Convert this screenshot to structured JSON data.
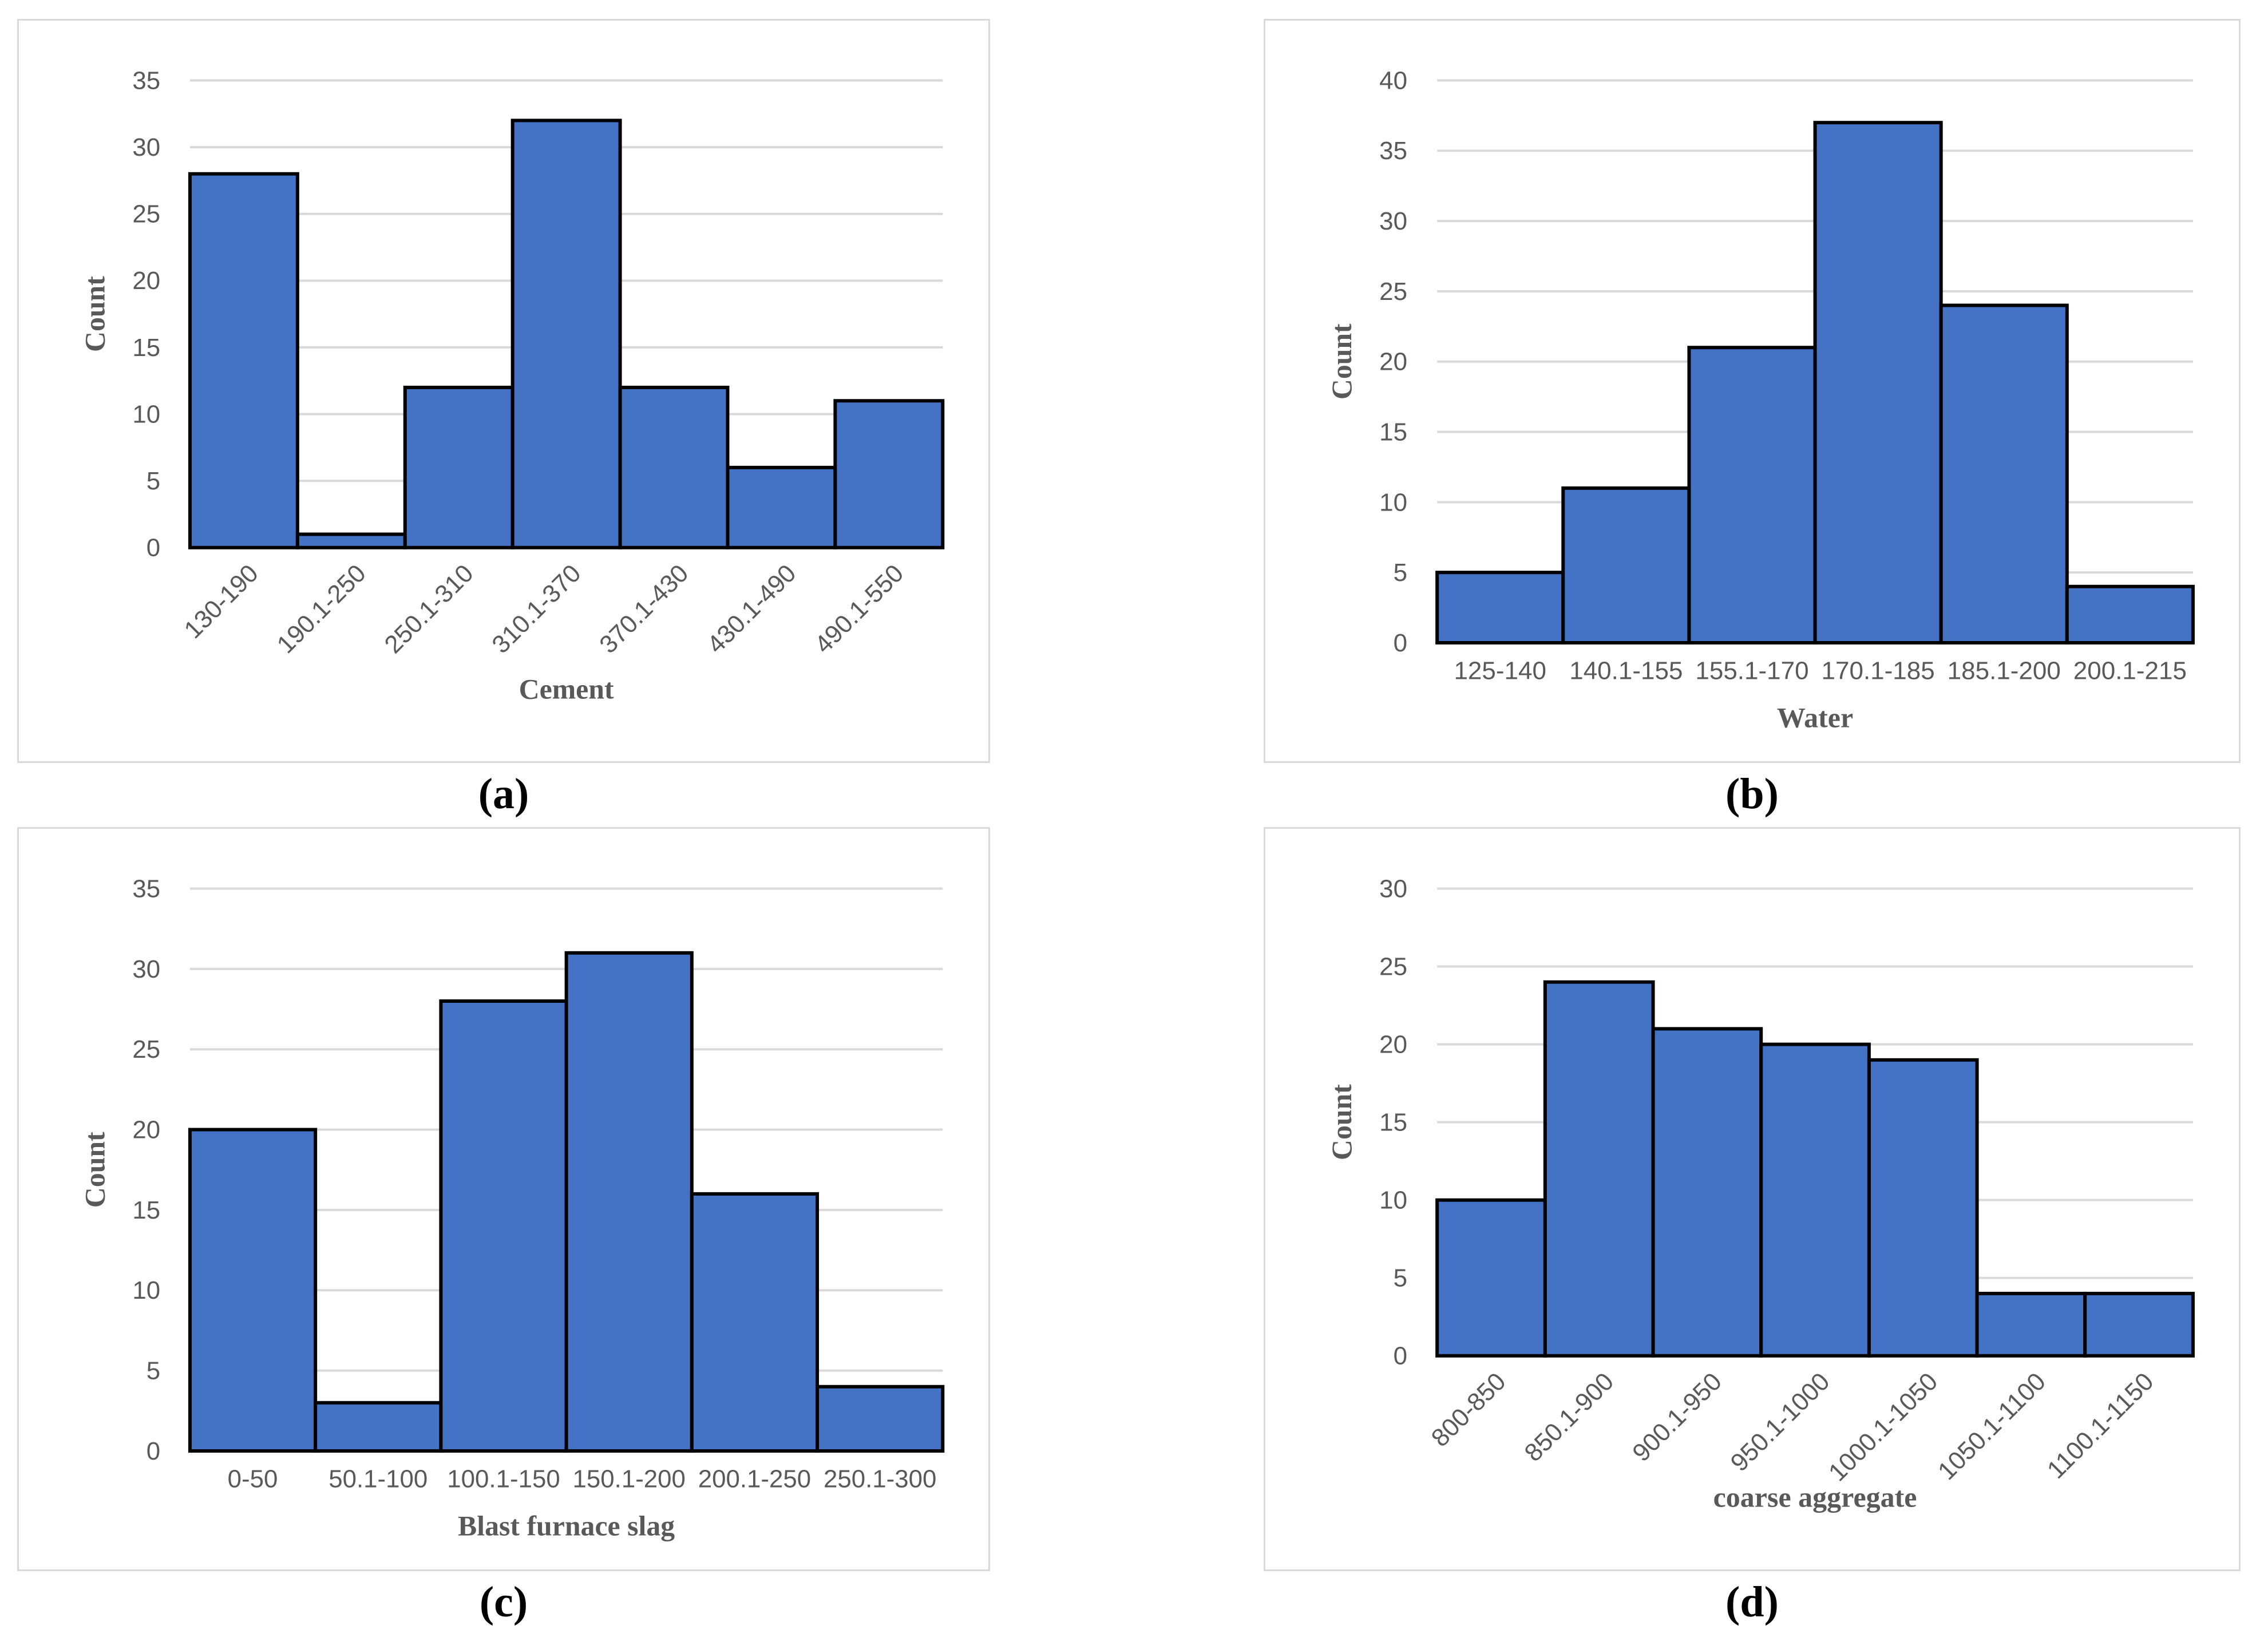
{
  "figure": {
    "panels": [
      {
        "caption": "(a)",
        "chart_data": {
          "type": "bar",
          "title": "",
          "categories": [
            "130-190",
            "190.1-250",
            "250.1-310",
            "310.1-370",
            "370.1-430",
            "430.1-490",
            "490.1-550"
          ],
          "values": [
            28,
            1,
            12,
            32,
            12,
            6,
            11
          ],
          "xlabel": "Cement",
          "ylabel": "Count",
          "ylim": [
            0,
            35
          ],
          "ytick_step": 5,
          "grid": true,
          "legend": "none",
          "xtick_rotation": 45
        }
      },
      {
        "caption": "(b)",
        "chart_data": {
          "type": "bar",
          "title": "",
          "categories": [
            "125-140",
            "140.1-155",
            "155.1-170",
            "170.1-185",
            "185.1-200",
            "200.1-215"
          ],
          "values": [
            5,
            11,
            21,
            37,
            24,
            4
          ],
          "xlabel": "Water",
          "ylabel": "Count",
          "ylim": [
            0,
            40
          ],
          "ytick_step": 5,
          "grid": true,
          "legend": "none",
          "xtick_rotation": 0
        }
      },
      {
        "caption": "(c)",
        "chart_data": {
          "type": "bar",
          "title": "",
          "categories": [
            "0-50",
            "50.1-100",
            "100.1-150",
            "150.1-200",
            "200.1-250",
            "250.1-300"
          ],
          "values": [
            20,
            3,
            28,
            31,
            16,
            4
          ],
          "xlabel": "Blast furnace slag",
          "ylabel": "Count",
          "ylim": [
            0,
            35
          ],
          "ytick_step": 5,
          "grid": true,
          "legend": "none",
          "xtick_rotation": 0
        }
      },
      {
        "caption": "(d)",
        "chart_data": {
          "type": "bar",
          "title": "",
          "categories": [
            "800-850",
            "850.1-900",
            "900.1-950",
            "950.1-1000",
            "1000.1-1050",
            "1050.1-1100",
            "1100.1-1150"
          ],
          "values": [
            10,
            24,
            21,
            20,
            19,
            4,
            4
          ],
          "xlabel": "coarse aggregate",
          "ylabel": "Count",
          "ylim": [
            0,
            30
          ],
          "ytick_step": 5,
          "grid": true,
          "legend": "none",
          "xtick_rotation": 45
        }
      }
    ]
  },
  "colors": {
    "bar_fill": "#4472C4",
    "bar_border": "#000000",
    "gridline": "#D9D9D9",
    "axis_line": "#D9D9D9",
    "tick_label": "#595959",
    "axis_title": "#595959",
    "panel_border": "#D9D9D9",
    "caption": "#000000",
    "background": "#FFFFFF"
  }
}
